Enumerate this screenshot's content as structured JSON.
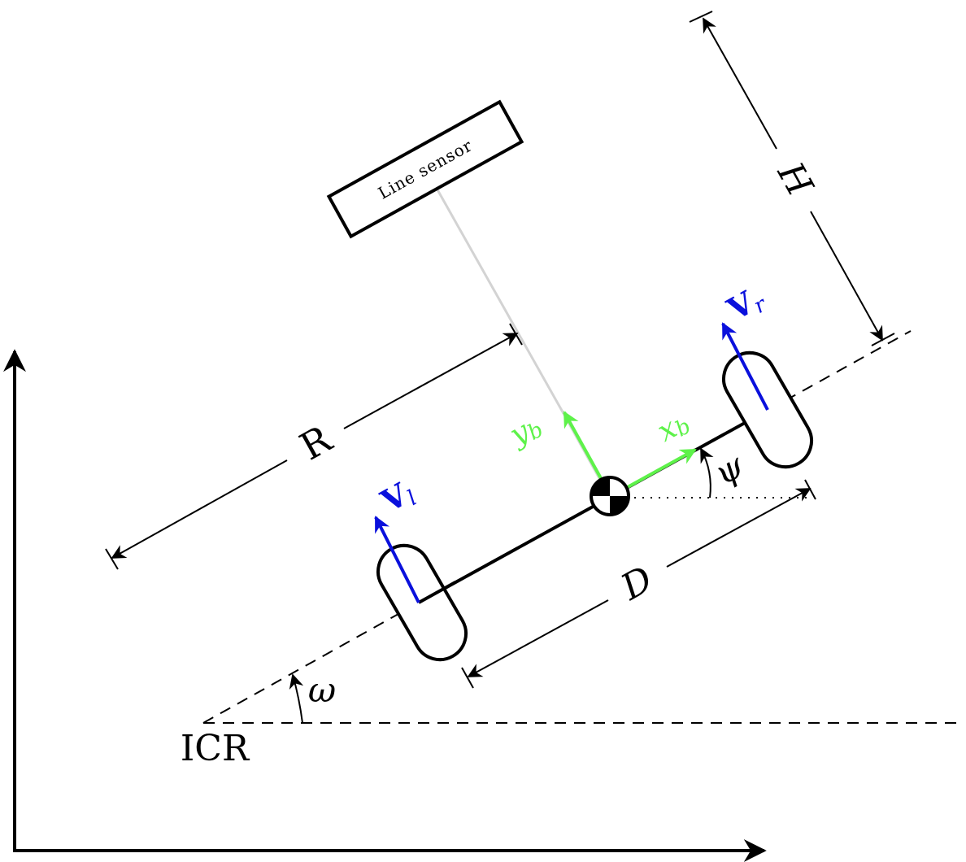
{
  "colors": {
    "black": "#000000",
    "green": "#5ef24a",
    "blue": "#0a10dc",
    "gray": "#d3d3d3"
  },
  "labels": {
    "line_sensor": "Line sensor",
    "R": "R",
    "H": "H",
    "D": "D",
    "psi": "ψ",
    "omega": "ω",
    "icr": "ICR",
    "xb_base": "x",
    "xb_sub": "b",
    "yb_base": "y",
    "yb_sub": "b",
    "vl_base": "V",
    "vl_sub": "l",
    "vr_base": "V",
    "vr_sub": "r"
  },
  "icons": {
    "center_of_mass": "center-of-mass-icon"
  }
}
